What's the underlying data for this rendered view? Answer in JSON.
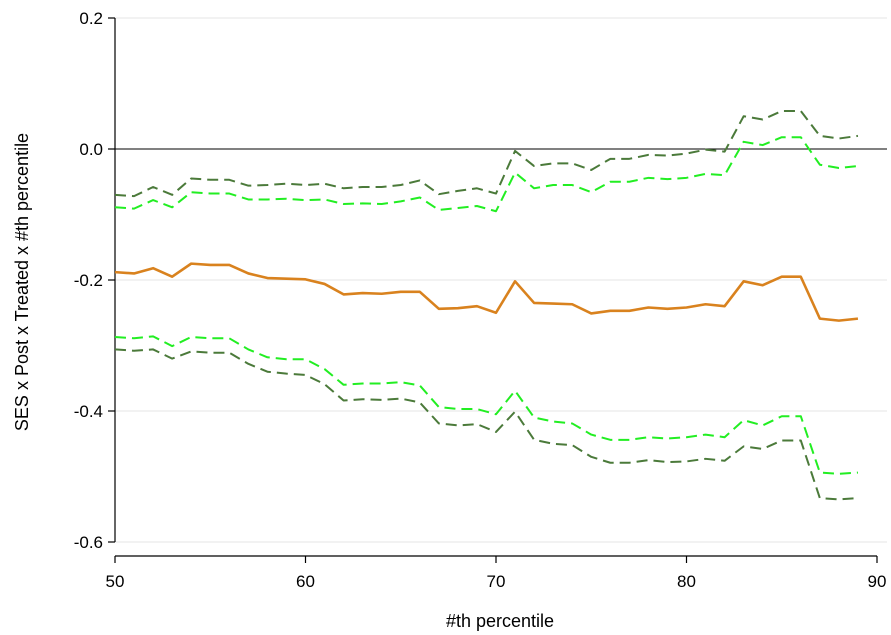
{
  "chart_data": {
    "type": "line",
    "title": "",
    "xlabel": "#th percentile",
    "ylabel": "SES x Post x Treated x #th percentile",
    "xlim": [
      50,
      90
    ],
    "ylim": [
      -0.6,
      0.2
    ],
    "xticks": [
      50,
      60,
      70,
      80,
      90
    ],
    "xtick_labels": [
      "50",
      "60",
      "70",
      "80",
      "90"
    ],
    "yticks": [
      -0.6,
      -0.4,
      -0.2,
      0.0,
      0.2
    ],
    "ytick_labels": [
      "-0.6",
      "-0.4",
      "-0.2",
      "0.0",
      "0.2"
    ],
    "reference_line": 0,
    "grid": "horizontal",
    "legend": "none",
    "x": [
      50,
      51,
      52,
      53,
      54,
      55,
      56,
      57,
      58,
      59,
      60,
      61,
      62,
      63,
      64,
      65,
      66,
      67,
      68,
      69,
      70,
      71,
      72,
      73,
      74,
      75,
      76,
      77,
      78,
      79,
      80,
      81,
      82,
      83,
      84,
      85,
      86,
      87,
      88,
      89
    ],
    "series": [
      {
        "style": "solid",
        "color": "#d9821e",
        "values": [
          -0.188,
          -0.19,
          -0.182,
          -0.195,
          -0.175,
          -0.177,
          -0.177,
          -0.19,
          -0.197,
          -0.198,
          -0.199,
          -0.206,
          -0.222,
          -0.22,
          -0.221,
          -0.218,
          -0.218,
          -0.244,
          -0.243,
          -0.24,
          -0.25,
          -0.202,
          -0.235,
          -0.236,
          -0.237,
          -0.251,
          -0.247,
          -0.247,
          -0.242,
          -0.244,
          -0.242,
          -0.237,
          -0.24,
          -0.202,
          -0.208,
          -0.195,
          -0.195,
          -0.259,
          -0.262,
          -0.259
        ]
      },
      {
        "style": "dashed",
        "color": "#22ee22",
        "values": [
          -0.089,
          -0.091,
          -0.078,
          -0.089,
          -0.066,
          -0.068,
          -0.068,
          -0.077,
          -0.077,
          -0.076,
          -0.078,
          -0.077,
          -0.084,
          -0.083,
          -0.084,
          -0.08,
          -0.074,
          -0.093,
          -0.09,
          -0.087,
          -0.095,
          -0.036,
          -0.06,
          -0.055,
          -0.055,
          -0.066,
          -0.05,
          -0.05,
          -0.044,
          -0.046,
          -0.044,
          -0.038,
          -0.04,
          0.011,
          0.006,
          0.018,
          0.018,
          -0.024,
          -0.029,
          -0.026
        ]
      },
      {
        "style": "dashed",
        "color": "#22ee22",
        "values": [
          -0.287,
          -0.289,
          -0.286,
          -0.301,
          -0.287,
          -0.289,
          -0.289,
          -0.306,
          -0.318,
          -0.321,
          -0.321,
          -0.336,
          -0.36,
          -0.358,
          -0.358,
          -0.356,
          -0.361,
          -0.394,
          -0.397,
          -0.397,
          -0.405,
          -0.369,
          -0.41,
          -0.416,
          -0.419,
          -0.436,
          -0.444,
          -0.444,
          -0.44,
          -0.442,
          -0.44,
          -0.436,
          -0.44,
          -0.414,
          -0.422,
          -0.408,
          -0.408,
          -0.494,
          -0.496,
          -0.494
        ]
      },
      {
        "style": "dashed",
        "color": "#4b7a3a",
        "values": [
          -0.07,
          -0.072,
          -0.058,
          -0.07,
          -0.045,
          -0.047,
          -0.047,
          -0.056,
          -0.055,
          -0.053,
          -0.055,
          -0.053,
          -0.06,
          -0.058,
          -0.058,
          -0.055,
          -0.048,
          -0.069,
          -0.064,
          -0.06,
          -0.068,
          -0.003,
          -0.026,
          -0.022,
          -0.022,
          -0.032,
          -0.015,
          -0.015,
          -0.009,
          -0.01,
          -0.007,
          -0.001,
          -0.004,
          0.05,
          0.045,
          0.058,
          0.058,
          0.02,
          0.016,
          0.02
        ]
      },
      {
        "style": "dashed",
        "color": "#4b7a3a",
        "values": [
          -0.306,
          -0.308,
          -0.306,
          -0.32,
          -0.309,
          -0.311,
          -0.311,
          -0.328,
          -0.34,
          -0.343,
          -0.345,
          -0.359,
          -0.384,
          -0.382,
          -0.383,
          -0.381,
          -0.387,
          -0.419,
          -0.422,
          -0.42,
          -0.432,
          -0.401,
          -0.444,
          -0.45,
          -0.452,
          -0.47,
          -0.479,
          -0.479,
          -0.475,
          -0.478,
          -0.477,
          -0.473,
          -0.476,
          -0.454,
          -0.458,
          -0.445,
          -0.445,
          -0.533,
          -0.535,
          -0.533
        ]
      }
    ]
  }
}
